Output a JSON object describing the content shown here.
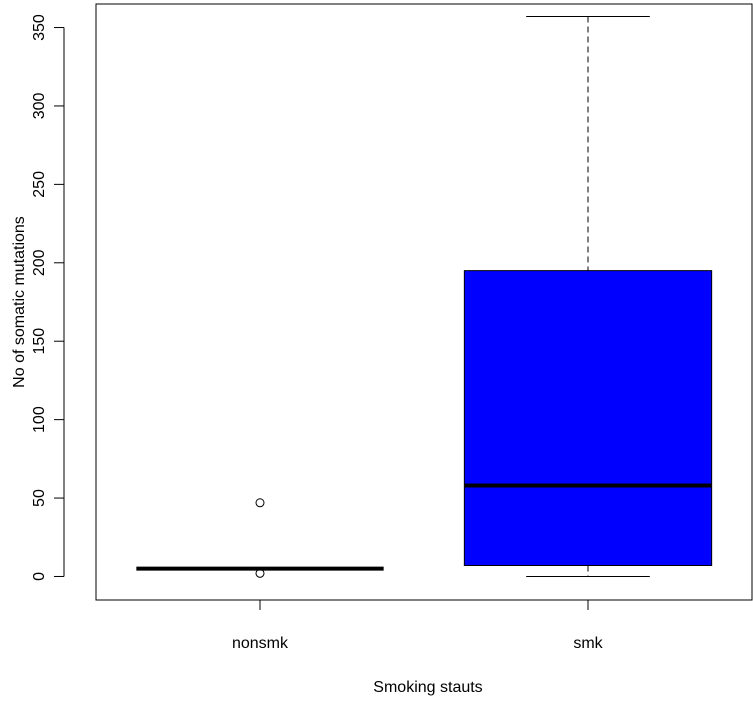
{
  "chart_data": {
    "type": "box",
    "title": "",
    "xlabel": "Smoking stauts",
    "ylabel": "No of somatic mutations",
    "ylim": [
      -15,
      365
    ],
    "y_ticks": [
      0,
      50,
      100,
      150,
      200,
      250,
      300,
      350
    ],
    "y_tick_labels": [
      "0",
      "50",
      "100",
      "150",
      "200",
      "250",
      "300",
      "350"
    ],
    "grid": false,
    "categories": [
      "nonsmk",
      "smk"
    ],
    "boxes": [
      {
        "category": "nonsmk",
        "whisker_low": 5,
        "q1": 5,
        "median": 5,
        "q3": 5,
        "whisker_high": 5,
        "outliers": [
          47,
          2
        ],
        "fill": "#ffffff"
      },
      {
        "category": "smk",
        "whisker_low": 0,
        "q1": 7,
        "median": 58,
        "q3": 195,
        "whisker_high": 357,
        "outliers": [],
        "fill": "#0000ff"
      }
    ]
  }
}
